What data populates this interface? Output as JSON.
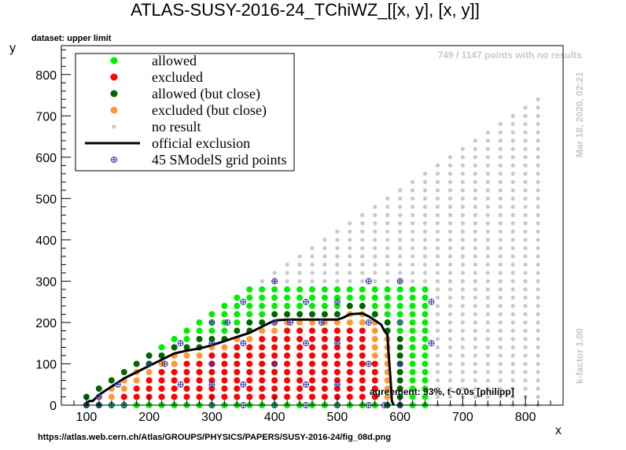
{
  "title": "ATLAS-SUSY-2016-24_TChiWZ_[[x, y], [x, y]]",
  "dataset_label": "dataset: upper limit",
  "no_results_note": "749 / 1147 points with no results",
  "timestamp": "Mar 18, 2020, 02:21",
  "kfactor": "k-factor 1.00",
  "agreement": "agreement: 93%, t~0.0s [philipp]",
  "source_url": "https://atlas.web.cern.ch/Atlas/GROUPS/PHYSICS/PAPERS/SUSY-2016-24/fig_08d.png",
  "colors": {
    "allowed": "#00ee00",
    "excluded": "#ff0000",
    "allowed_close": "#006600",
    "excluded_close": "#ff9933",
    "no_result": "#c8c8c8",
    "official": "#000000",
    "grid_marker": "#3333aa"
  },
  "legend": [
    {
      "key": "allowed",
      "label": "allowed"
    },
    {
      "key": "excluded",
      "label": "excluded"
    },
    {
      "key": "allowed_close",
      "label": "allowed (but close)"
    },
    {
      "key": "excluded_close",
      "label": "excluded (but close)"
    },
    {
      "key": "no_result",
      "label": "no result"
    },
    {
      "key": "official",
      "label": "official exclusion"
    },
    {
      "key": "grid_marker",
      "label": "45 SModelS grid points"
    }
  ],
  "chart_data": {
    "type": "scatter",
    "title": "ATLAS-SUSY-2016-24_TChiWZ_[[x, y], [x, y]]",
    "xlabel": "x",
    "ylabel": "y",
    "xlim": [
      60,
      860
    ],
    "ylim": [
      0,
      870
    ],
    "x_ticks": [
      100,
      200,
      300,
      400,
      500,
      600,
      700,
      800
    ],
    "y_ticks": [
      0,
      100,
      200,
      300,
      400,
      500,
      600,
      700,
      800
    ],
    "grid": false,
    "legend_position": "top-left",
    "point_grid": {
      "x_start": 100,
      "x_step": 20,
      "x_end": 820,
      "y_start": 0,
      "y_step": 20,
      "description_rule": "points for y <= x - 80 (plus low-x band)"
    },
    "official_exclusion": [
      [
        100,
        5
      ],
      [
        105,
        10
      ],
      [
        110,
        10
      ],
      [
        120,
        25
      ],
      [
        140,
        45
      ],
      [
        160,
        65
      ],
      [
        180,
        80
      ],
      [
        200,
        95
      ],
      [
        220,
        110
      ],
      [
        240,
        125
      ],
      [
        260,
        132
      ],
      [
        280,
        137
      ],
      [
        300,
        145
      ],
      [
        320,
        155
      ],
      [
        340,
        165
      ],
      [
        360,
        175
      ],
      [
        380,
        190
      ],
      [
        400,
        205
      ],
      [
        420,
        207
      ],
      [
        440,
        207
      ],
      [
        460,
        207
      ],
      [
        480,
        207
      ],
      [
        500,
        207
      ],
      [
        510,
        212
      ],
      [
        520,
        220
      ],
      [
        540,
        222
      ],
      [
        550,
        215
      ],
      [
        560,
        205
      ],
      [
        570,
        195
      ],
      [
        575,
        180
      ],
      [
        580,
        170
      ],
      [
        582,
        120
      ],
      [
        585,
        60
      ],
      [
        587,
        10
      ],
      [
        590,
        0
      ]
    ],
    "smodels_grid_points": [
      [
        100,
        0
      ],
      [
        120,
        0
      ],
      [
        140,
        0
      ],
      [
        160,
        0
      ],
      [
        120,
        20
      ],
      [
        150,
        50
      ],
      [
        200,
        100
      ],
      [
        250,
        150
      ],
      [
        250,
        50
      ],
      [
        300,
        200
      ],
      [
        300,
        150
      ],
      [
        300,
        100
      ],
      [
        300,
        50
      ],
      [
        300,
        0
      ],
      [
        350,
        250
      ],
      [
        350,
        150
      ],
      [
        350,
        50
      ],
      [
        350,
        0
      ],
      [
        400,
        300
      ],
      [
        400,
        200
      ],
      [
        400,
        100
      ],
      [
        400,
        0
      ],
      [
        450,
        250
      ],
      [
        450,
        150
      ],
      [
        450,
        50
      ],
      [
        450,
        0
      ],
      [
        500,
        250
      ],
      [
        500,
        150
      ],
      [
        500,
        50
      ],
      [
        500,
        0
      ],
      [
        550,
        300
      ],
      [
        550,
        200
      ],
      [
        550,
        100
      ],
      [
        550,
        0
      ],
      [
        600,
        300
      ],
      [
        600,
        200
      ],
      [
        600,
        100
      ],
      [
        600,
        0
      ],
      [
        650,
        250
      ],
      [
        650,
        150
      ],
      [
        225,
        100
      ],
      [
        325,
        200
      ],
      [
        425,
        200
      ],
      [
        475,
        200
      ],
      [
        575,
        0
      ]
    ]
  }
}
